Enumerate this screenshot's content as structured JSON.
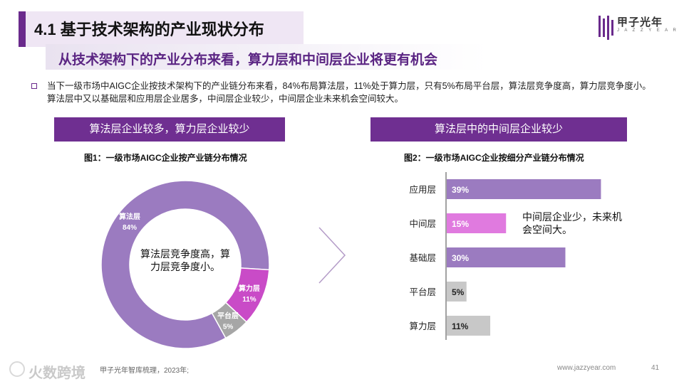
{
  "header": {
    "title": "4.1 基于技术架构的产业现状分布",
    "subtitle": "从技术架构下的产业分布来看，算力层和中间层企业将更有机会",
    "logo_text": "甲子光年",
    "logo_sub": "J A Z Z Y E A R"
  },
  "intro": "当下一级市场中AIGC企业按技术架构下的产业链分布来看，84%布局算法层，11%处于算力层，只有5%布局平台层，算法层竞争度高，算力层竞争度小。算法层中又以基础层和应用层企业居多，中间层企业较少，中间层企业未来机会空间较大。",
  "left_panel": {
    "heading": "算法层企业较多，算力层企业较少",
    "center_note": "算法层竞争度高，算力层竞争度小。"
  },
  "right_panel": {
    "heading": "算法层中的中间层企业较少",
    "note": "中间层企业少，未来机会空间大。"
  },
  "footer": {
    "source": "甲子光年智库梳理，2023年;",
    "url": "www.jazzyear.com",
    "page": "41",
    "watermark": "火数跨境"
  },
  "chart_data": [
    {
      "type": "pie",
      "title": "图1：一级市场AIGC企业按产业链分布情况",
      "donut": true,
      "slices": [
        {
          "label": "算法层",
          "value": 84,
          "display": "84%",
          "color": "#9b7bc0"
        },
        {
          "label": "算力层",
          "value": 11,
          "display": "11%",
          "color": "#c94bc7"
        },
        {
          "label": "平台层",
          "value": 5,
          "display": "5%",
          "color": "#a6a6a6"
        }
      ]
    },
    {
      "type": "bar",
      "orientation": "horizontal",
      "title": "图2：一级市场AIGC企业按细分产业链分布情况",
      "categories": [
        "应用层",
        "中间层",
        "基础层",
        "平台层",
        "算力层"
      ],
      "values": [
        39,
        15,
        30,
        5,
        11
      ],
      "labels": [
        "39%",
        "15%",
        "30%",
        "5%",
        "11%"
      ],
      "colors": [
        "#9b7bc0",
        "#e07adf",
        "#9b7bc0",
        "#c8c8c8",
        "#c8c8c8"
      ],
      "xlim": [
        0,
        40
      ]
    }
  ]
}
